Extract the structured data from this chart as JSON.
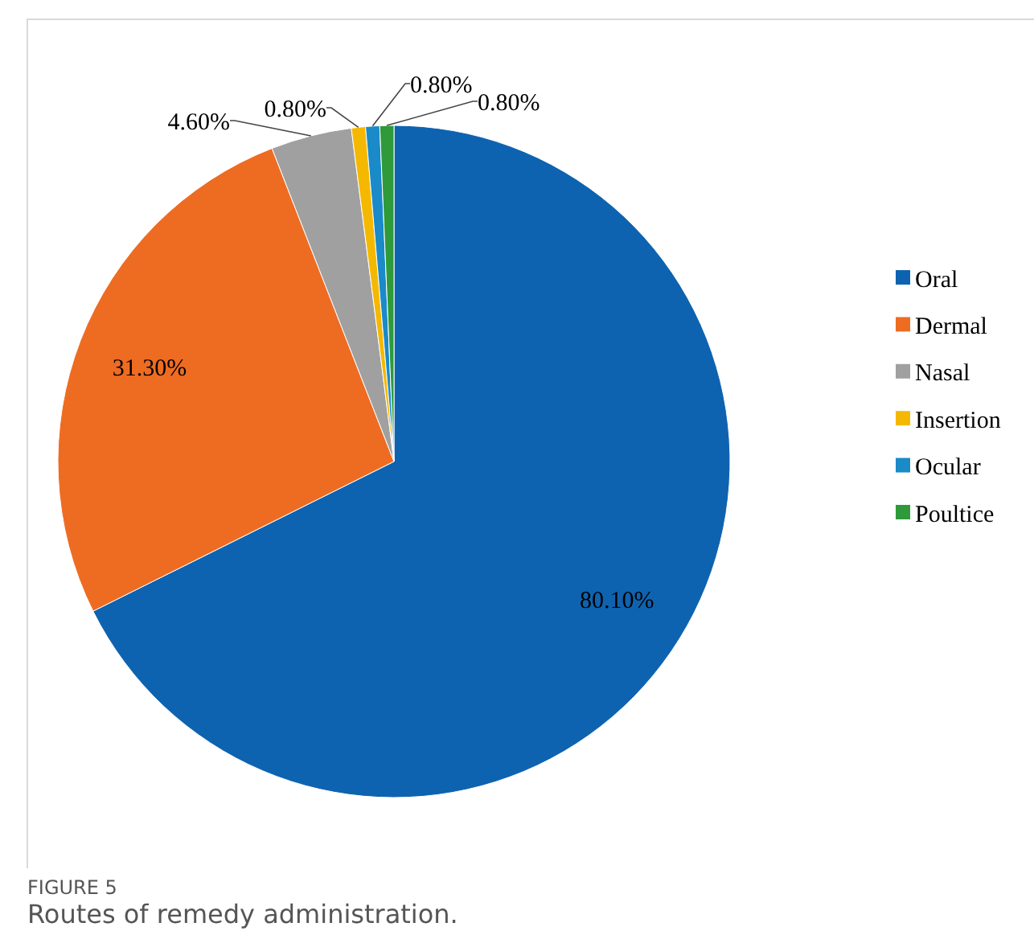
{
  "chart_data": {
    "type": "pie",
    "title": "Routes of remedy administration.",
    "annotations": [
      "FIGURE 5"
    ],
    "categories": [
      "Oral",
      "Dermal",
      "Nasal",
      "Insertion",
      "Ocular",
      "Poultice"
    ],
    "values": [
      80.1,
      31.3,
      4.6,
      0.8,
      0.8,
      0.8
    ],
    "colors": [
      "#0e63b0",
      "#ee6c22",
      "#a0a0a0",
      "#f5b800",
      "#1a8ac8",
      "#2e9a3a"
    ],
    "value_labels": [
      "80.10%",
      "31.30%",
      "4.60%",
      "0.80%",
      "0.80%",
      "0.80%"
    ],
    "legend": "right"
  }
}
